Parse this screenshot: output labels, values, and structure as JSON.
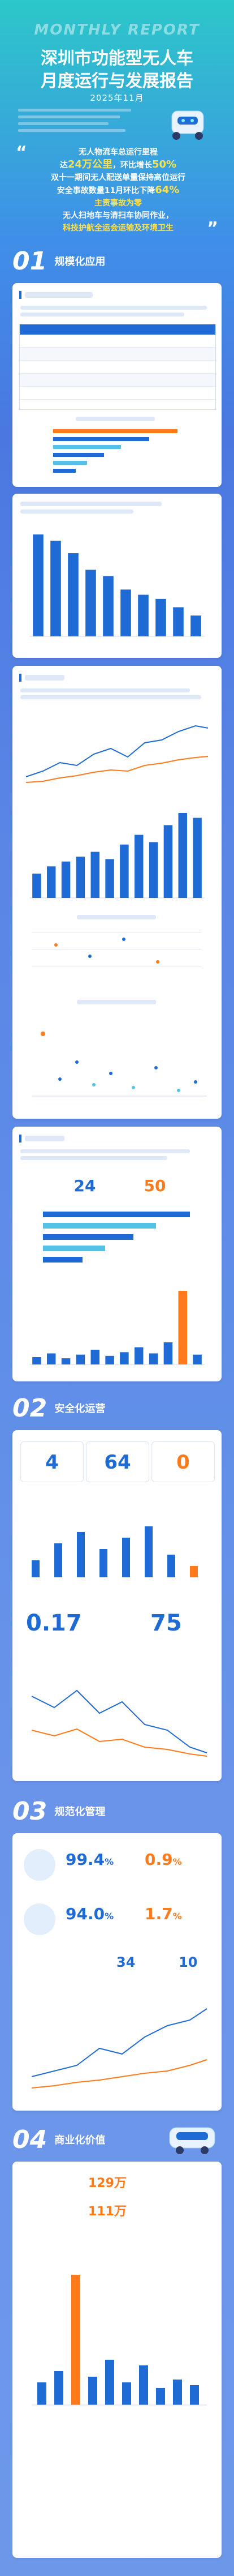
{
  "header": {
    "banner": "MONTHLY REPORT",
    "title_line1": "深圳市功能型无人车",
    "title_line2": "月度运行与发展报告",
    "date": "2025年11月"
  },
  "highlights": {
    "l1": "无人物流车总运行里程",
    "l2a": "达",
    "l2b": "24万公里",
    "l2c": "，环比增长",
    "l2d": "50%",
    "l3": "双十一期间无人配送单量保持高位运行",
    "l4a": "安全事故数量11月环比下降",
    "l4b": "64%",
    "l5": "主责事故为零",
    "l6": "无人扫地车与清扫车协同作业，",
    "l7": "科技护航全运会运输及环境卫生"
  },
  "sections": {
    "s1": {
      "num": "01",
      "title": "规模化应用"
    },
    "s2": {
      "num": "02",
      "title": "安全化运营"
    },
    "s3": {
      "num": "03",
      "title": "规范化管理"
    },
    "s4": {
      "num": "04",
      "title": "商业化价值"
    }
  },
  "ops": {
    "mileage_value": "24",
    "mileage_growth": "50"
  },
  "safety": {
    "count": "4",
    "drop": "64",
    "zero": "0",
    "rate": "0.17",
    "rate_drop": "75"
  },
  "mgmt": {
    "rate1": "99.4",
    "rate1_unit": "%",
    "rate2": "0.9",
    "rate2_unit": "%",
    "rate3": "94.0",
    "rate3_unit": "%",
    "rate4": "1.7",
    "rate4_unit": "%",
    "num1": "34",
    "num2": "10"
  },
  "biz": {
    "v1": "129万",
    "v2": "111万"
  },
  "colors": {
    "primary": "#1f6bd6",
    "accent": "#ff7a1a",
    "teal": "#2cc7c9"
  },
  "chart_data": [
    {
      "type": "bar",
      "categories": [
        "",
        "",
        "",
        "",
        "",
        "",
        "",
        "",
        "",
        ""
      ],
      "values": [
        98,
        92,
        80,
        64,
        58,
        45,
        40,
        36,
        28,
        20
      ],
      "title": "",
      "xlabel": "",
      "ylabel": ""
    },
    {
      "type": "bar",
      "categories": [
        "",
        "",
        "",
        "",
        "",
        "",
        "",
        "",
        "",
        "",
        "",
        ""
      ],
      "values": [
        20,
        26,
        30,
        34,
        38,
        32,
        44,
        52,
        46,
        60,
        70,
        66
      ],
      "title": "",
      "xlabel": "",
      "ylabel": ""
    },
    {
      "type": "bar",
      "categories": [
        "",
        "",
        "",
        "",
        "",
        "",
        "",
        "",
        "",
        "",
        "",
        ""
      ],
      "values": [
        6,
        9,
        5,
        8,
        12,
        7,
        10,
        14,
        9,
        18,
        60,
        8
      ],
      "title": "",
      "xlabel": "",
      "ylabel": ""
    }
  ]
}
